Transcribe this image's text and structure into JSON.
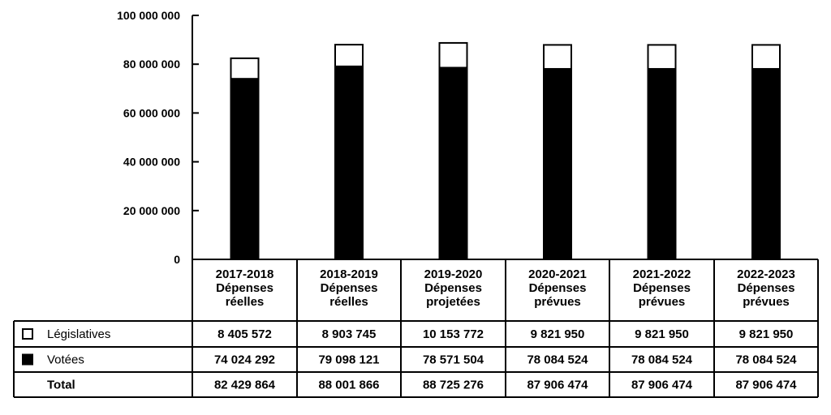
{
  "chart_data": {
    "type": "bar",
    "stacked": true,
    "categories": [
      [
        "2017-2018",
        "Dépenses",
        "réelles"
      ],
      [
        "2018-2019",
        "Dépenses",
        "réelles"
      ],
      [
        "2019-2020",
        "Dépenses",
        "projetées"
      ],
      [
        "2020-2021",
        "Dépenses",
        "prévues"
      ],
      [
        "2021-2022",
        "Dépenses",
        "prévues"
      ],
      [
        "2022-2023",
        "Dépenses",
        "prévues"
      ]
    ],
    "series": [
      {
        "name": "Votées",
        "color": "#000000",
        "values": [
          74024292,
          79098121,
          78571504,
          78084524,
          78084524,
          78084524
        ]
      },
      {
        "name": "Législatives",
        "color": "#ffffff",
        "values": [
          8405572,
          8903745,
          10153772,
          9821950,
          9821950,
          9821950
        ]
      }
    ],
    "ylim": [
      0,
      100000000
    ],
    "yticks": [
      {
        "value": 0,
        "label": "0"
      },
      {
        "value": 20000000,
        "label": "20 000 000"
      },
      {
        "value": 40000000,
        "label": "40 000 000"
      },
      {
        "value": 60000000,
        "label": "60 000 000"
      },
      {
        "value": 80000000,
        "label": "80 000 000"
      },
      {
        "value": 100000000,
        "label": "100 000 000"
      }
    ],
    "table": {
      "rows": [
        {
          "label": "Législatives",
          "marker": "white-square",
          "values": [
            "8 405 572",
            "8 903 745",
            "10 153 772",
            "9 821 950",
            "9 821 950",
            "9 821 950"
          ]
        },
        {
          "label": "Votées",
          "marker": "black-square",
          "values": [
            "74 024 292",
            "79 098 121",
            "78 571 504",
            "78 084 524",
            "78 084 524",
            "78 084 524"
          ]
        },
        {
          "label": "Total",
          "marker": "",
          "values": [
            "82 429 864",
            "88 001 866",
            "88 725 276",
            "87 906 474",
            "87 906 474",
            "87 906 474"
          ]
        }
      ]
    },
    "grid": false,
    "legend": "table-left"
  }
}
